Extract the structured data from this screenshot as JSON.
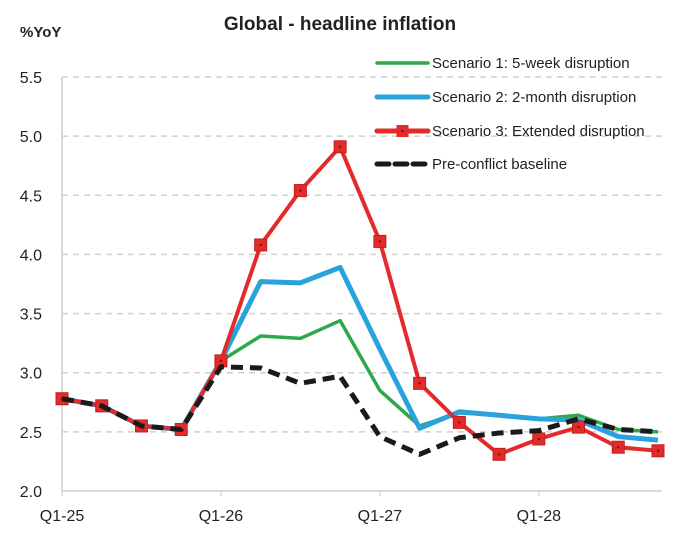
{
  "chart_data": {
    "type": "line",
    "title": "Global - headline inflation",
    "xlabel": "",
    "ylabel": "%YoY",
    "ylim": [
      2.0,
      5.5
    ],
    "yticks": [
      2.0,
      2.5,
      3.0,
      3.5,
      4.0,
      4.5,
      5.0,
      5.5
    ],
    "ytick_labels": [
      "2.0",
      "2.5",
      "3.0",
      "3.5",
      "4.0",
      "4.5",
      "5.0",
      "5.5"
    ],
    "grid": "horizontal dashed",
    "legend_position": "top-right",
    "x": [
      "Q1-25",
      "Q2-25",
      "Q3-25",
      "Q4-25",
      "Q1-26",
      "Q2-26",
      "Q3-26",
      "Q4-26",
      "Q1-27",
      "Q2-27",
      "Q3-27",
      "Q4-27",
      "Q1-28",
      "Q2-28",
      "Q3-28",
      "Q4-28"
    ],
    "xtick_labels": [
      {
        "index": 0,
        "label": "Q1-25"
      },
      {
        "index": 4,
        "label": "Q1-26"
      },
      {
        "index": 8,
        "label": "Q1-27"
      },
      {
        "index": 12,
        "label": "Q1-28"
      }
    ],
    "series": [
      {
        "name": "Scenario 1: 5-week disruption",
        "color": "#2ea84a",
        "style": "solid",
        "marker": "none",
        "values": [
          2.78,
          2.72,
          2.55,
          2.52,
          3.1,
          3.31,
          3.29,
          3.44,
          2.85,
          2.55,
          2.66,
          2.64,
          2.61,
          2.64,
          2.52,
          2.5
        ]
      },
      {
        "name": "Scenario 2: 2-month disruption",
        "color": "#2aa3dc",
        "style": "solid",
        "marker": "none",
        "values": [
          2.78,
          2.72,
          2.55,
          2.52,
          3.1,
          3.77,
          3.76,
          3.89,
          3.2,
          2.53,
          2.67,
          2.64,
          2.61,
          2.6,
          2.46,
          2.43
        ]
      },
      {
        "name": "Scenario 3: Extended disruption",
        "color": "#e42b2b",
        "style": "solid",
        "marker": "square",
        "values": [
          2.78,
          2.72,
          2.55,
          2.52,
          3.1,
          4.08,
          4.54,
          4.91,
          4.11,
          2.91,
          2.58,
          2.31,
          2.44,
          2.54,
          2.37,
          2.34
        ]
      },
      {
        "name": "Pre-conflict baseline",
        "color": "#1a1a1a",
        "style": "dashed",
        "marker": "none",
        "values": [
          2.78,
          2.72,
          2.55,
          2.52,
          3.05,
          3.04,
          2.91,
          2.97,
          2.46,
          2.31,
          2.45,
          2.49,
          2.51,
          2.61,
          2.52,
          2.5
        ]
      }
    ]
  }
}
